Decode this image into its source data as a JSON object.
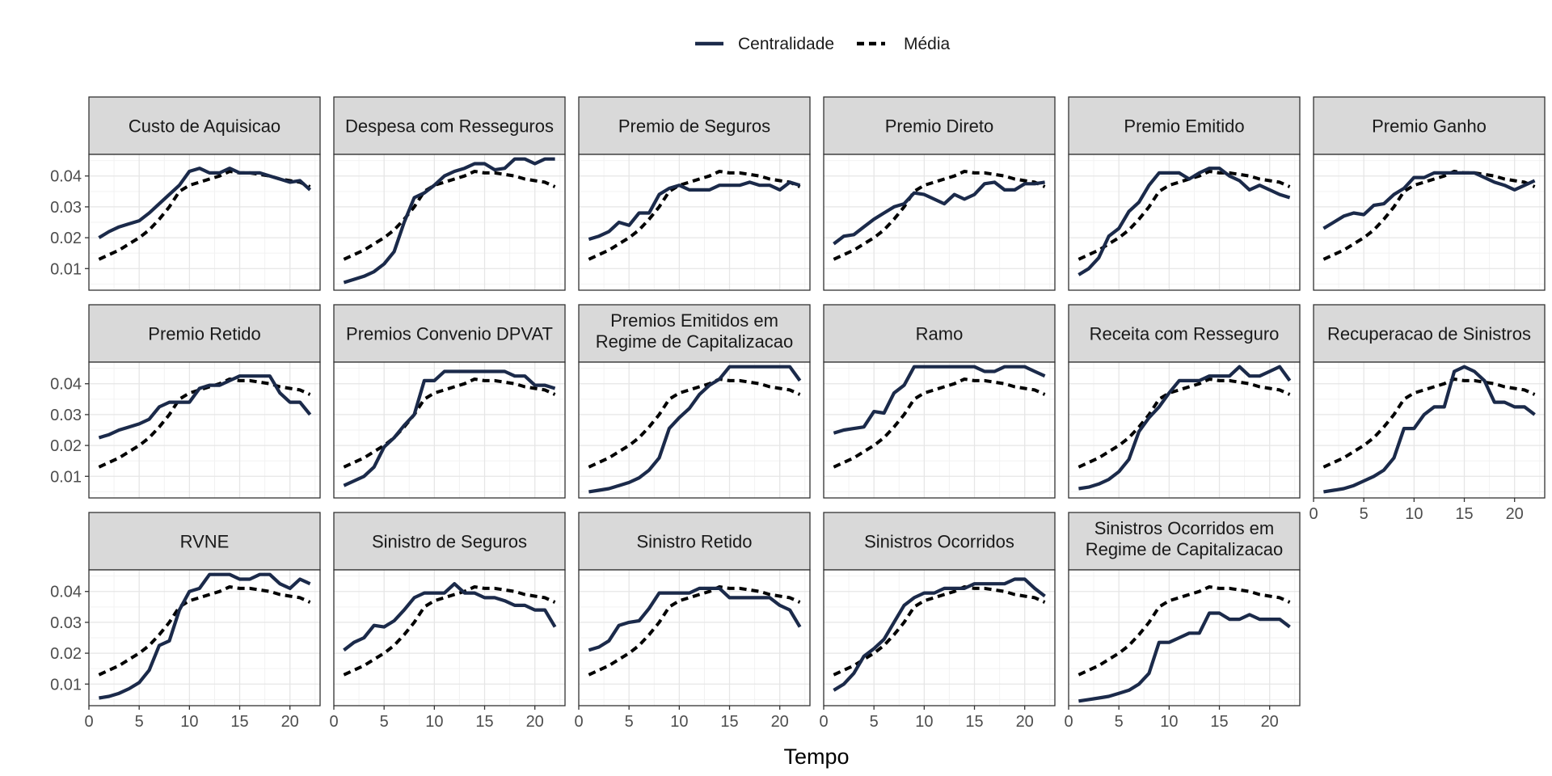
{
  "chart_data": {
    "type": "line",
    "layout": "facet-grid",
    "xlabel": "Tempo",
    "ylabel": "",
    "xlim": [
      0,
      23
    ],
    "ylim": [
      0.003,
      0.047
    ],
    "x_ticks": [
      0,
      5,
      10,
      15,
      20
    ],
    "x_tick_labels": [
      "0",
      "5",
      "10",
      "15",
      "20"
    ],
    "y_ticks": [
      0.01,
      0.02,
      0.03,
      0.04
    ],
    "y_tick_labels": [
      "0.01",
      "0.02",
      "0.03",
      "0.04"
    ],
    "grid": true,
    "legend": {
      "position": "top",
      "entries": [
        {
          "label": "Centralidade",
          "style": "solid",
          "color": "#1b2a4a"
        },
        {
          "label": "Média",
          "style": "dashed",
          "color": "#000000"
        }
      ]
    },
    "x": [
      1,
      2,
      3,
      4,
      5,
      6,
      7,
      8,
      9,
      10,
      11,
      12,
      13,
      14,
      15,
      16,
      17,
      18,
      19,
      20,
      21,
      22
    ],
    "media": [
      0.013,
      0.0145,
      0.016,
      0.018,
      0.02,
      0.0225,
      0.026,
      0.03,
      0.035,
      0.037,
      0.038,
      0.039,
      0.04,
      0.0415,
      0.041,
      0.041,
      0.0405,
      0.04,
      0.039,
      0.0385,
      0.038,
      0.0365
    ],
    "panels": [
      {
        "title": "Custo de Aquisicao",
        "centralidade": [
          0.02,
          0.022,
          0.0235,
          0.0245,
          0.0255,
          0.028,
          0.031,
          0.034,
          0.037,
          0.0415,
          0.0425,
          0.041,
          0.041,
          0.0425,
          0.041,
          0.041,
          0.041,
          0.04,
          0.039,
          0.038,
          0.0385,
          0.0355
        ]
      },
      {
        "title": "Despesa com Resseguros",
        "centralidade": [
          0.0055,
          0.0065,
          0.0075,
          0.009,
          0.0115,
          0.0155,
          0.025,
          0.033,
          0.0345,
          0.037,
          0.04,
          0.0415,
          0.0425,
          0.044,
          0.044,
          0.042,
          0.0425,
          0.0455,
          0.0455,
          0.044,
          0.0455,
          0.0455
        ]
      },
      {
        "title": "Premio de Seguros",
        "centralidade": [
          0.0195,
          0.0205,
          0.022,
          0.025,
          0.024,
          0.028,
          0.028,
          0.034,
          0.036,
          0.037,
          0.0355,
          0.0355,
          0.0355,
          0.037,
          0.037,
          0.037,
          0.038,
          0.037,
          0.037,
          0.0355,
          0.038,
          0.037
        ]
      },
      {
        "title": "Premio Direto",
        "centralidade": [
          0.018,
          0.0205,
          0.021,
          0.0235,
          0.026,
          0.028,
          0.03,
          0.031,
          0.0345,
          0.034,
          0.0325,
          0.031,
          0.034,
          0.0325,
          0.034,
          0.0375,
          0.038,
          0.0355,
          0.0355,
          0.0375,
          0.0375,
          0.038
        ]
      },
      {
        "title": "Premio Emitido",
        "centralidade": [
          0.008,
          0.01,
          0.0135,
          0.0205,
          0.023,
          0.0285,
          0.0315,
          0.037,
          0.041,
          0.041,
          0.041,
          0.039,
          0.041,
          0.0425,
          0.0425,
          0.04,
          0.0385,
          0.0355,
          0.037,
          0.0355,
          0.034,
          0.033
        ]
      },
      {
        "title": "Premio Ganho",
        "centralidade": [
          0.023,
          0.025,
          0.027,
          0.028,
          0.0275,
          0.0305,
          0.031,
          0.034,
          0.036,
          0.0395,
          0.0395,
          0.041,
          0.041,
          0.041,
          0.041,
          0.041,
          0.0395,
          0.038,
          0.037,
          0.0355,
          0.037,
          0.0385
        ]
      },
      {
        "title": "Premio Retido",
        "centralidade": [
          0.0225,
          0.0235,
          0.025,
          0.026,
          0.027,
          0.0285,
          0.0325,
          0.034,
          0.034,
          0.034,
          0.0385,
          0.0395,
          0.0395,
          0.041,
          0.0425,
          0.0425,
          0.0425,
          0.0425,
          0.037,
          0.034,
          0.034,
          0.03
        ]
      },
      {
        "title": "Premios Convenio DPVAT",
        "centralidade": [
          0.007,
          0.0085,
          0.01,
          0.013,
          0.0195,
          0.0225,
          0.0265,
          0.03,
          0.041,
          0.041,
          0.044,
          0.044,
          0.044,
          0.044,
          0.044,
          0.044,
          0.044,
          0.0425,
          0.0425,
          0.0395,
          0.0395,
          0.0385
        ]
      },
      {
        "title": "Premios Emitidos em\nRegime de Capitalizacao",
        "centralidade": [
          0.005,
          0.0055,
          0.006,
          0.007,
          0.008,
          0.0095,
          0.012,
          0.016,
          0.0255,
          0.029,
          0.032,
          0.0365,
          0.0395,
          0.0415,
          0.0455,
          0.0455,
          0.0455,
          0.0455,
          0.0455,
          0.0455,
          0.0455,
          0.041
        ]
      },
      {
        "title": "Ramo",
        "centralidade": [
          0.024,
          0.025,
          0.0255,
          0.026,
          0.031,
          0.0305,
          0.037,
          0.0395,
          0.0455,
          0.0455,
          0.0455,
          0.0455,
          0.0455,
          0.0455,
          0.0455,
          0.044,
          0.044,
          0.0455,
          0.0455,
          0.0455,
          0.044,
          0.0425
        ]
      },
      {
        "title": "Receita com Resseguro",
        "centralidade": [
          0.006,
          0.0065,
          0.0075,
          0.009,
          0.0115,
          0.0155,
          0.0245,
          0.029,
          0.0325,
          0.037,
          0.041,
          0.041,
          0.041,
          0.0425,
          0.0425,
          0.0425,
          0.0455,
          0.0425,
          0.0425,
          0.044,
          0.0455,
          0.041
        ]
      },
      {
        "title": "Recuperacao de Sinistros",
        "centralidade": [
          0.005,
          0.0055,
          0.006,
          0.007,
          0.0085,
          0.01,
          0.012,
          0.016,
          0.0255,
          0.0255,
          0.03,
          0.0325,
          0.0325,
          0.044,
          0.0455,
          0.044,
          0.041,
          0.034,
          0.034,
          0.0325,
          0.0325,
          0.03
        ]
      },
      {
        "title": "RVNE",
        "centralidade": [
          0.0055,
          0.006,
          0.007,
          0.0085,
          0.0105,
          0.0145,
          0.0225,
          0.024,
          0.034,
          0.04,
          0.041,
          0.0455,
          0.0455,
          0.0455,
          0.044,
          0.044,
          0.0455,
          0.0455,
          0.0425,
          0.041,
          0.044,
          0.0425
        ]
      },
      {
        "title": "Sinistro de Seguros",
        "centralidade": [
          0.021,
          0.0235,
          0.025,
          0.029,
          0.0285,
          0.0305,
          0.034,
          0.038,
          0.0395,
          0.0395,
          0.0395,
          0.0425,
          0.0395,
          0.0395,
          0.038,
          0.038,
          0.037,
          0.0355,
          0.0355,
          0.034,
          0.034,
          0.0285
        ]
      },
      {
        "title": "Sinistro Retido",
        "centralidade": [
          0.021,
          0.022,
          0.024,
          0.029,
          0.03,
          0.0305,
          0.0345,
          0.0395,
          0.0395,
          0.0395,
          0.0395,
          0.041,
          0.041,
          0.041,
          0.038,
          0.038,
          0.038,
          0.038,
          0.038,
          0.0355,
          0.034,
          0.0285
        ]
      },
      {
        "title": "Sinistros Ocorridos",
        "centralidade": [
          0.008,
          0.01,
          0.0135,
          0.019,
          0.0215,
          0.0245,
          0.03,
          0.0355,
          0.038,
          0.0395,
          0.0395,
          0.041,
          0.041,
          0.041,
          0.0425,
          0.0425,
          0.0425,
          0.0425,
          0.044,
          0.044,
          0.041,
          0.0385
        ]
      },
      {
        "title": "Sinistros Ocorridos em\nRegime de Capitalizacao",
        "centralidade": [
          0.0045,
          0.005,
          0.0055,
          0.006,
          0.007,
          0.008,
          0.01,
          0.0135,
          0.0235,
          0.0235,
          0.025,
          0.0265,
          0.0265,
          0.033,
          0.033,
          0.031,
          0.031,
          0.0325,
          0.031,
          0.031,
          0.031,
          0.0285
        ]
      }
    ]
  }
}
